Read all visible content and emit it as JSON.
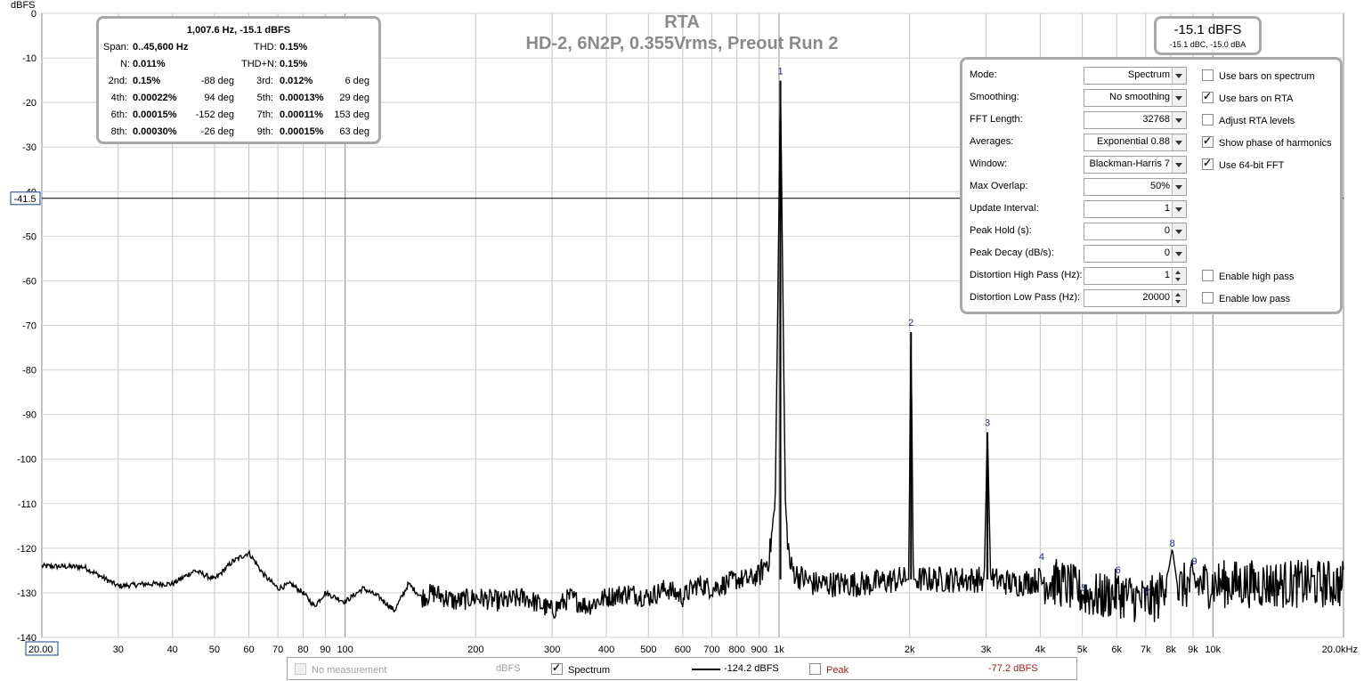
{
  "titles": {
    "main": "RTA",
    "sub": "HD-2, 6N2P, 0.355Vrms, Preout Run 2"
  },
  "level": {
    "main": "-15.1 dBFS",
    "sub": "-15.1 dBC, -15.0 dBA"
  },
  "distortion_panel": {
    "header": "1,007.6 Hz, -15.1 dBFS",
    "span_label": "Span:",
    "span_value": "0..45,600 Hz",
    "thd_label": "THD:",
    "thd_value": "0.15%",
    "n_label": "N:",
    "n_value": "0.011%",
    "thdn_label": "THD+N:",
    "thdn_value": "0.15%",
    "harmonics": [
      {
        "label": "2nd:",
        "value": "0.15%",
        "phase": "-88 deg",
        "label2": "3rd:",
        "value2": "0.012%",
        "phase2": "6 deg"
      },
      {
        "label": "4th:",
        "value": "0.00022%",
        "phase": "94 deg",
        "label2": "5th:",
        "value2": "0.00013%",
        "phase2": "29 deg"
      },
      {
        "label": "6th:",
        "value": "0.00015%",
        "phase": "-152 deg",
        "label2": "7th:",
        "value2": "0.00011%",
        "phase2": "153 deg"
      },
      {
        "label": "8th:",
        "value": "0.00030%",
        "phase": "-26 deg",
        "label2": "9th:",
        "value2": "0.00015%",
        "phase2": "63 deg"
      }
    ]
  },
  "settings": {
    "rows": [
      {
        "label": "Mode:",
        "value": "Spectrum",
        "kind": "select"
      },
      {
        "label": "Smoothing:",
        "value": "No  smoothing",
        "kind": "select"
      },
      {
        "label": "FFT Length:",
        "value": "32768",
        "kind": "select"
      },
      {
        "label": "Averages:",
        "value": "Exponential 0.88",
        "kind": "select"
      },
      {
        "label": "Window:",
        "value": "Blackman-Harris 7",
        "kind": "select"
      },
      {
        "label": "Max Overlap:",
        "value": "50%",
        "kind": "select"
      },
      {
        "label": "Update Interval:",
        "value": "1",
        "kind": "select"
      },
      {
        "label": "Peak Hold (s):",
        "value": "0",
        "kind": "select"
      },
      {
        "label": "Peak Decay (dB/s):",
        "value": "0",
        "kind": "select"
      },
      {
        "label": "Distortion High Pass (Hz):",
        "value": "1",
        "kind": "spin"
      },
      {
        "label": "Distortion Low Pass (Hz):",
        "value": "20000",
        "kind": "spin"
      }
    ],
    "checks": [
      {
        "label": "Use bars on spectrum",
        "checked": false,
        "row": 0
      },
      {
        "label": "Use bars on RTA",
        "checked": true,
        "row": 1
      },
      {
        "label": "Adjust RTA levels",
        "checked": false,
        "row": 2
      },
      {
        "label": "Show phase of harmonics",
        "checked": true,
        "row": 3
      },
      {
        "label": "Use 64-bit FFT",
        "checked": true,
        "row": 4
      },
      {
        "label": "Enable high pass",
        "checked": false,
        "row": 9
      },
      {
        "label": "Enable low pass",
        "checked": false,
        "row": 10
      }
    ]
  },
  "legend": {
    "no_measurement": "No measurement",
    "unit": "dBFS",
    "spectrum_label": "Spectrum",
    "spectrum_value": "-124.2 dBFS",
    "peak_label": "Peak",
    "peak_value": "-77.2 dBFS"
  },
  "chart_data": {
    "type": "line",
    "ylabel": "dBFS",
    "xlabel": "",
    "x_scale": "log",
    "xlim": [
      20,
      20000
    ],
    "ylim": [
      -140,
      0
    ],
    "y_ticks": [
      0,
      -10,
      -20,
      -30,
      -40,
      -50,
      -60,
      -70,
      -80,
      -90,
      -100,
      -110,
      -120,
      -130,
      -140
    ],
    "y_tick_labels": [
      "0",
      "-10",
      "-20",
      "-30",
      "-40",
      "-50",
      "-60",
      "-70",
      "-80",
      "-90",
      "-100",
      "-110",
      "-120",
      "-130",
      "-140"
    ],
    "x_ticks": [
      20,
      30,
      40,
      50,
      60,
      70,
      80,
      90,
      100,
      200,
      300,
      400,
      500,
      600,
      700,
      800,
      900,
      1000,
      2000,
      3000,
      4000,
      5000,
      6000,
      7000,
      8000,
      9000,
      10000,
      20000
    ],
    "x_tick_labels": [
      "20.00",
      "30",
      "40",
      "50",
      "60",
      "70",
      "80",
      "90",
      "100",
      "200",
      "300",
      "400",
      "500",
      "600",
      "700",
      "800",
      "900",
      "1k",
      "2k",
      "3k",
      "4k",
      "5k",
      "6k",
      "7k",
      "8k",
      "9k",
      "10k",
      "20.0kHz"
    ],
    "cursor": {
      "y": -41.5,
      "label": "-41.5"
    },
    "grid": true,
    "series": [
      {
        "name": "Spectrum",
        "points": [
          [
            20,
            -124
          ],
          [
            25,
            -124.2
          ],
          [
            30,
            -128.5
          ],
          [
            35,
            -128
          ],
          [
            40,
            -128
          ],
          [
            45,
            -125
          ],
          [
            50,
            -127
          ],
          [
            55,
            -123
          ],
          [
            60,
            -121
          ],
          [
            65,
            -126
          ],
          [
            70,
            -129
          ],
          [
            75,
            -128
          ],
          [
            80,
            -130
          ],
          [
            85,
            -133
          ],
          [
            90,
            -130
          ],
          [
            100,
            -132
          ],
          [
            110,
            -129
          ],
          [
            120,
            -131
          ],
          [
            130,
            -134
          ],
          [
            140,
            -128
          ],
          [
            150,
            -131
          ],
          [
            160,
            -130
          ],
          [
            180,
            -132
          ],
          [
            200,
            -131
          ],
          [
            230,
            -132
          ],
          [
            260,
            -131
          ],
          [
            300,
            -134
          ],
          [
            330,
            -131
          ],
          [
            360,
            -133
          ],
          [
            400,
            -131
          ],
          [
            450,
            -130
          ],
          [
            500,
            -131
          ],
          [
            550,
            -129
          ],
          [
            600,
            -131
          ],
          [
            650,
            -128
          ],
          [
            700,
            -129
          ],
          [
            750,
            -128
          ],
          [
            800,
            -127
          ],
          [
            850,
            -127
          ],
          [
            900,
            -126
          ],
          [
            950,
            -122
          ],
          [
            980,
            -110
          ],
          [
            995,
            -60
          ],
          [
            1007.6,
            -15.1
          ],
          [
            1020,
            -60
          ],
          [
            1035,
            -112
          ],
          [
            1060,
            -124
          ],
          [
            1100,
            -126
          ],
          [
            1200,
            -128
          ],
          [
            1400,
            -128
          ],
          [
            1600,
            -128
          ],
          [
            1900,
            -127
          ],
          [
            1990,
            -127
          ],
          [
            2015,
            -71.5
          ],
          [
            2040,
            -127
          ],
          [
            2500,
            -127
          ],
          [
            2970,
            -127
          ],
          [
            3023,
            -94
          ],
          [
            3075,
            -127
          ],
          [
            3500,
            -128
          ],
          [
            4000,
            -127
          ],
          [
            4500,
            -128
          ],
          [
            5000,
            -130
          ],
          [
            5500,
            -131
          ],
          [
            6000,
            -130
          ],
          [
            7000,
            -132
          ],
          [
            7500,
            -131
          ],
          [
            7900,
            -125
          ],
          [
            8060,
            -120
          ],
          [
            8300,
            -129
          ],
          [
            9000,
            -128
          ],
          [
            10000,
            -128
          ],
          [
            12000,
            -128
          ],
          [
            15000,
            -128
          ],
          [
            18000,
            -128
          ],
          [
            20000,
            -128
          ]
        ]
      }
    ],
    "harmonic_markers": [
      {
        "label": "1",
        "x": 1007.6,
        "y": -15.1
      },
      {
        "label": "2",
        "x": 2015,
        "y": -71.5
      },
      {
        "label": "3",
        "x": 3023,
        "y": -94
      },
      {
        "label": "4",
        "x": 4030,
        "y": -124
      },
      {
        "label": "5",
        "x": 5038,
        "y": -131
      },
      {
        "label": "6",
        "x": 6046,
        "y": -127
      },
      {
        "label": "7",
        "x": 7053,
        "y": -132
      },
      {
        "label": "8",
        "x": 8061,
        "y": -121
      },
      {
        "label": "9",
        "x": 9068,
        "y": -125
      }
    ]
  }
}
